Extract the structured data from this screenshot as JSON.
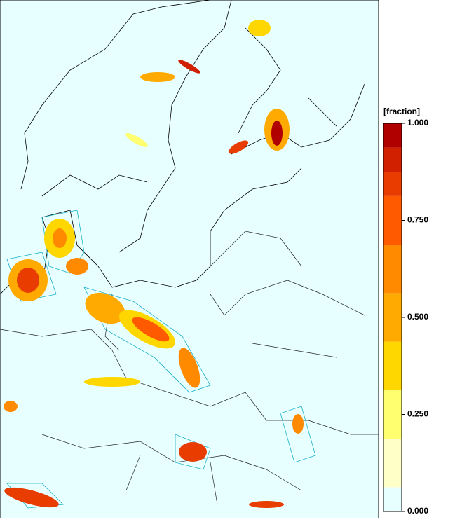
{
  "colorbar": {
    "label": "[fraction]",
    "range": [
      0,
      1
    ],
    "levels": [
      0,
      0.0625,
      0.1875,
      0.3125,
      0.4375,
      0.5625,
      0.6875,
      0.8125,
      0.875,
      0.9375,
      1
    ],
    "colors": [
      "#e8ffff",
      "#ffffc8",
      "#ffff70",
      "#ffd700",
      "#ffaa00",
      "#ff8a00",
      "#ff5a00",
      "#e83c00",
      "#d02000",
      "#b00000"
    ],
    "ticks": [
      {
        "value": 1,
        "label": "1.000"
      },
      {
        "value": 0.75,
        "label": "0.750"
      },
      {
        "value": 0.5,
        "label": "0.500"
      },
      {
        "value": 0.25,
        "label": "0.250"
      },
      {
        "value": 0,
        "label": "0.000"
      }
    ]
  }
}
